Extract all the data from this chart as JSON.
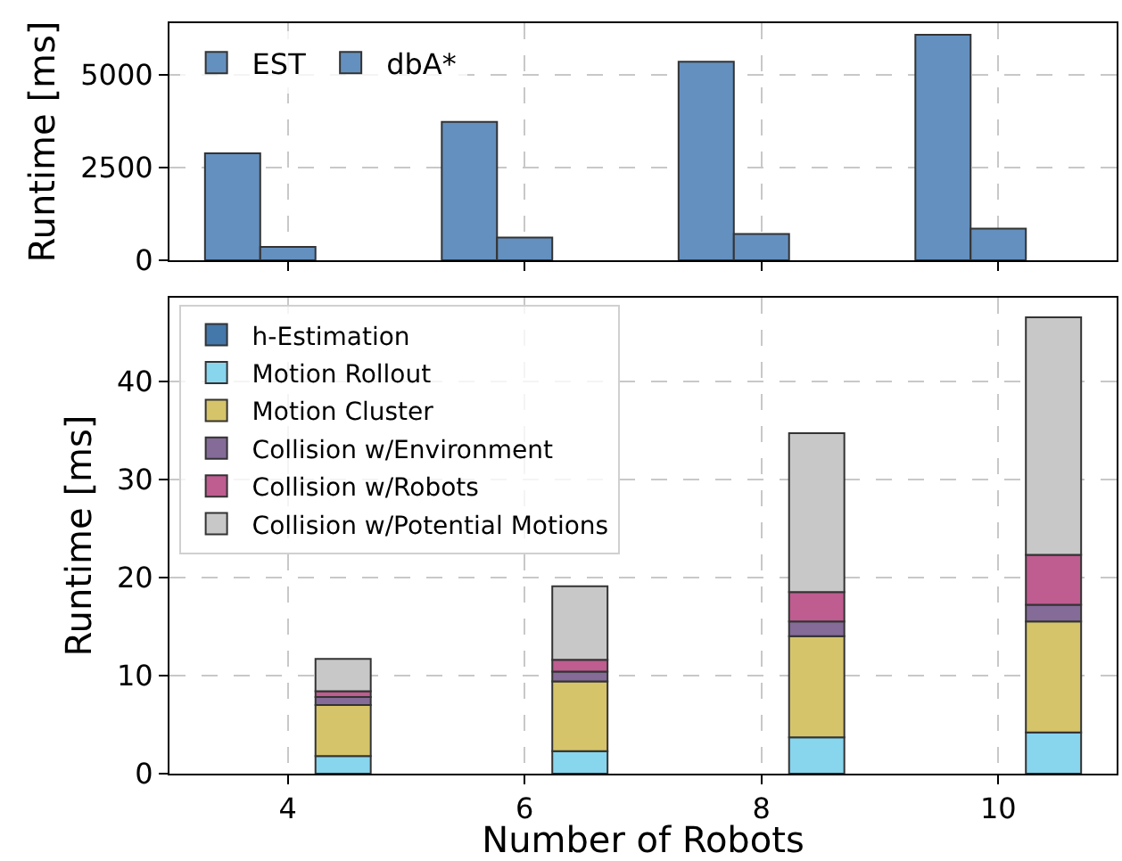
{
  "chart_data": [
    {
      "type": "bar",
      "categories": [
        "4",
        "6",
        "8",
        "10"
      ],
      "ylabel": "Runtime [ms]",
      "ylim": [
        0,
        6390
      ],
      "yticks": [
        0,
        2500,
        5000
      ],
      "grid": true,
      "legend": "top left",
      "tick_labels": "y",
      "series": [
        {
          "name": "dbA*",
          "color": "#6490bf",
          "values": [
            2880,
            3730,
            5350,
            6080
          ]
        },
        {
          "name": "EST",
          "color": "#6490bf",
          "values": [
            360,
            610,
            710,
            850
          ]
        }
      ]
    },
    {
      "type": "bar",
      "stacked": true,
      "categories": [
        "4",
        "6",
        "8",
        "10"
      ],
      "xlabel": "Number of Robots",
      "ylabel": "Runtime [ms]",
      "ylim": [
        0,
        48.5
      ],
      "yticks": [
        0,
        10,
        20,
        30,
        40
      ],
      "grid": true,
      "legend": "top left",
      "series": [
        {
          "name": "h-Estimation",
          "color": "#4477aa",
          "values": [
            0,
            0,
            0,
            0
          ]
        },
        {
          "name": "Motion Rollout",
          "color": "#88d5ee",
          "values": [
            1.8,
            2.3,
            3.7,
            4.2
          ]
        },
        {
          "name": "Motion Cluster",
          "color": "#d6c46a",
          "values": [
            5.2,
            7.1,
            10.3,
            11.3
          ]
        },
        {
          "name": "Collision w/Environment",
          "color": "#856b97",
          "values": [
            0.8,
            1.0,
            1.5,
            1.7
          ]
        },
        {
          "name": "Collision w/Robots",
          "color": "#bf5c90",
          "values": [
            0.6,
            1.2,
            3.0,
            5.1
          ]
        },
        {
          "name": "Collision w/Potential Motions",
          "color": "#c8c8c8",
          "values": [
            3.3,
            7.5,
            16.2,
            24.2
          ]
        }
      ]
    }
  ]
}
